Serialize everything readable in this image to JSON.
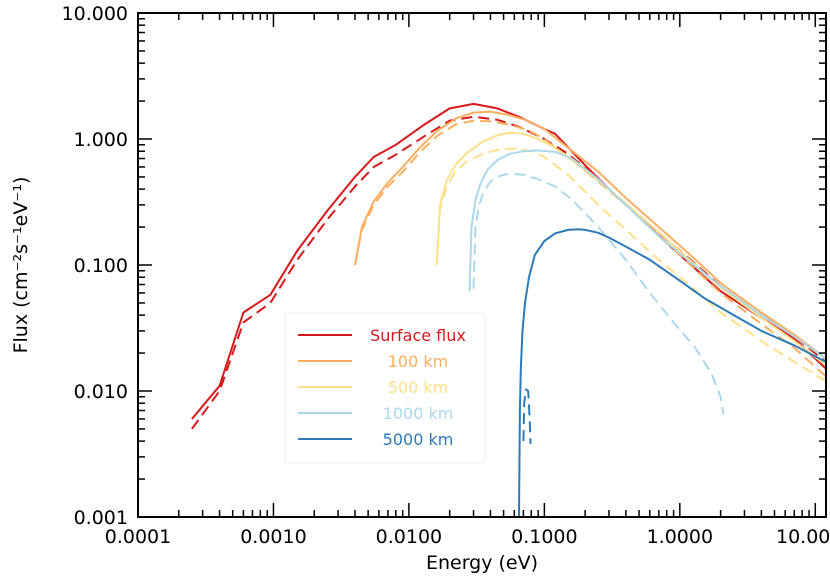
{
  "chart_data": {
    "type": "line",
    "title": "",
    "xlabel": "Energy (eV)",
    "ylabel": "Flux (cm⁻²s⁻¹eV⁻¹)",
    "xscale": "log",
    "yscale": "log",
    "xlim": [
      0.0001,
      12
    ],
    "ylim": [
      0.001,
      10
    ],
    "grid": false,
    "legend_position": "lower-left",
    "x_ticks": [
      {
        "value": 0.0001,
        "label": "0.0001"
      },
      {
        "value": 0.001,
        "label": "0.0010"
      },
      {
        "value": 0.01,
        "label": "0.0100"
      },
      {
        "value": 0.1,
        "label": "0.1000"
      },
      {
        "value": 1,
        "label": "1.0000"
      },
      {
        "value": 10,
        "label": "10.0000"
      }
    ],
    "y_ticks": [
      {
        "value": 0.001,
        "label": "0.001"
      },
      {
        "value": 0.01,
        "label": "0.010"
      },
      {
        "value": 0.1,
        "label": "0.100"
      },
      {
        "value": 1,
        "label": "1.000"
      },
      {
        "value": 10,
        "label": "10.000"
      }
    ],
    "series": [
      {
        "name": "Surface flux",
        "color": "#d7191c",
        "style": "solid",
        "legend": true,
        "x": [
          0.00025,
          0.0004,
          0.0006,
          0.00095,
          0.0015,
          0.0025,
          0.004,
          0.0055,
          0.008,
          0.013,
          0.02,
          0.03,
          0.045,
          0.065,
          0.1,
          0.12,
          0.2,
          0.3,
          0.5,
          1,
          2,
          4,
          7,
          12
        ],
        "y": [
          0.006,
          0.011,
          0.042,
          0.058,
          0.13,
          0.27,
          0.5,
          0.72,
          0.9,
          1.3,
          1.75,
          1.9,
          1.75,
          1.5,
          1.2,
          1.1,
          0.62,
          0.4,
          0.24,
          0.12,
          0.062,
          0.038,
          0.026,
          0.015
        ]
      },
      {
        "name": "Surface flux (dashed)",
        "color": "#d7191c",
        "style": "dashed",
        "legend": false,
        "x": [
          0.00025,
          0.0004,
          0.0006,
          0.00095,
          0.0015,
          0.0025,
          0.004,
          0.0055,
          0.008,
          0.013,
          0.02,
          0.03,
          0.045,
          0.065,
          0.1,
          0.15,
          0.25,
          0.4,
          0.7,
          1.2,
          2,
          4,
          7,
          12
        ],
        "y": [
          0.005,
          0.01,
          0.035,
          0.05,
          0.11,
          0.23,
          0.42,
          0.6,
          0.75,
          1.05,
          1.4,
          1.5,
          1.42,
          1.25,
          1.0,
          0.76,
          0.48,
          0.3,
          0.18,
          0.11,
          0.068,
          0.04,
          0.027,
          0.017
        ]
      },
      {
        "name": "100 km",
        "color": "#fdae61",
        "style": "solid",
        "legend": true,
        "x": [
          0.004,
          0.0045,
          0.0055,
          0.007,
          0.009,
          0.012,
          0.016,
          0.022,
          0.03,
          0.04,
          0.055,
          0.075,
          0.1,
          0.15,
          0.25,
          0.4,
          0.7,
          1.2,
          2,
          4,
          7,
          12
        ],
        "y": [
          0.1,
          0.2,
          0.32,
          0.45,
          0.6,
          0.85,
          1.15,
          1.45,
          1.62,
          1.65,
          1.55,
          1.4,
          1.2,
          0.85,
          0.55,
          0.34,
          0.2,
          0.12,
          0.072,
          0.042,
          0.028,
          0.018
        ]
      },
      {
        "name": "100 km (dashed)",
        "color": "#fdae61",
        "style": "dashed",
        "legend": false,
        "x": [
          0.004,
          0.0045,
          0.0055,
          0.007,
          0.009,
          0.012,
          0.016,
          0.022,
          0.03,
          0.04,
          0.055,
          0.075,
          0.1,
          0.15,
          0.25,
          0.4,
          0.7,
          1.2,
          2,
          4,
          7,
          12
        ],
        "y": [
          0.1,
          0.19,
          0.3,
          0.42,
          0.55,
          0.78,
          1.05,
          1.3,
          1.4,
          1.38,
          1.3,
          1.18,
          1.0,
          0.72,
          0.46,
          0.3,
          0.17,
          0.1,
          0.06,
          0.034,
          0.022,
          0.013
        ]
      },
      {
        "name": "500 km",
        "color": "#fee08b",
        "style": "solid",
        "legend": true,
        "x": [
          0.016,
          0.017,
          0.019,
          0.022,
          0.027,
          0.035,
          0.045,
          0.055,
          0.07,
          0.09,
          0.12,
          0.18,
          0.3,
          0.5,
          0.8,
          1.3,
          2,
          4,
          7,
          12
        ],
        "y": [
          0.1,
          0.3,
          0.47,
          0.62,
          0.78,
          0.95,
          1.07,
          1.12,
          1.1,
          1.0,
          0.85,
          0.62,
          0.4,
          0.25,
          0.16,
          0.1,
          0.066,
          0.038,
          0.025,
          0.016
        ]
      },
      {
        "name": "500 km (dashed)",
        "color": "#fee08b",
        "style": "dashed",
        "legend": false,
        "x": [
          0.016,
          0.017,
          0.019,
          0.022,
          0.027,
          0.035,
          0.045,
          0.06,
          0.08,
          0.1,
          0.15,
          0.25,
          0.4,
          0.7,
          1.2,
          2,
          4,
          7,
          12
        ],
        "y": [
          0.1,
          0.28,
          0.42,
          0.55,
          0.67,
          0.76,
          0.82,
          0.84,
          0.8,
          0.72,
          0.52,
          0.3,
          0.19,
          0.11,
          0.068,
          0.042,
          0.025,
          0.017,
          0.012
        ]
      },
      {
        "name": "1000 km",
        "color": "#abd9e9",
        "style": "solid",
        "legend": true,
        "x": [
          0.028,
          0.029,
          0.031,
          0.034,
          0.038,
          0.045,
          0.055,
          0.07,
          0.09,
          0.12,
          0.16,
          0.25,
          0.4,
          0.7,
          1.2,
          2,
          4,
          7,
          12
        ],
        "y": [
          0.062,
          0.2,
          0.33,
          0.45,
          0.57,
          0.68,
          0.76,
          0.8,
          0.81,
          0.79,
          0.7,
          0.48,
          0.3,
          0.17,
          0.105,
          0.068,
          0.04,
          0.027,
          0.018
        ]
      },
      {
        "name": "1000 km (dashed)",
        "color": "#abd9e9",
        "style": "dashed",
        "legend": false,
        "x": [
          0.03,
          0.031,
          0.033,
          0.036,
          0.04,
          0.047,
          0.055,
          0.07,
          0.09,
          0.12,
          0.16,
          0.25,
          0.4,
          0.6,
          0.9,
          1.3,
          1.7,
          2.0,
          2.1
        ],
        "y": [
          0.065,
          0.2,
          0.3,
          0.39,
          0.46,
          0.51,
          0.53,
          0.52,
          0.48,
          0.42,
          0.33,
          0.2,
          0.11,
          0.06,
          0.035,
          0.022,
          0.014,
          0.009,
          0.0065
        ]
      },
      {
        "name": "5000 km",
        "color": "#2c7bb6",
        "style": "solid",
        "legend": true,
        "x": [
          0.065,
          0.0655,
          0.066,
          0.067,
          0.069,
          0.072,
          0.077,
          0.085,
          0.1,
          0.12,
          0.15,
          0.18,
          0.2,
          0.25,
          0.3,
          0.4,
          0.6,
          1.0,
          1.5,
          2.5,
          4,
          7,
          12
        ],
        "y": [
          0.001,
          0.003,
          0.007,
          0.015,
          0.03,
          0.05,
          0.08,
          0.12,
          0.155,
          0.178,
          0.19,
          0.192,
          0.19,
          0.18,
          0.165,
          0.14,
          0.11,
          0.075,
          0.055,
          0.04,
          0.03,
          0.023,
          0.017
        ]
      },
      {
        "name": "5000 km (dashed)",
        "color": "#2c7bb6",
        "style": "dashed",
        "legend": false,
        "x": [
          0.07,
          0.071,
          0.073,
          0.076,
          0.078,
          0.079
        ],
        "y": [
          0.004,
          0.008,
          0.0103,
          0.01,
          0.006,
          0.0038
        ]
      }
    ]
  }
}
